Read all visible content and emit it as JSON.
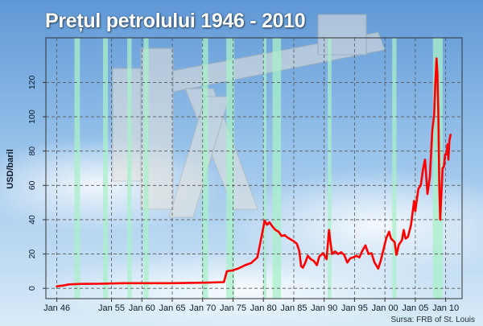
{
  "title": "Prețul petrolului 1946 - 2010",
  "source": "Sursa: FRB of St. Louis",
  "colors": {
    "line": "#ff0000",
    "recession_band": "#a8f0c8",
    "grid": "#555555",
    "plot_border": "#333333",
    "sky_top": "#5f98d6",
    "sky_bottom": "#d8ebf8"
  },
  "chart_data": {
    "type": "line",
    "title": "Prețul petrolului 1946 - 2010",
    "xlabel": "",
    "ylabel": "USD/baril",
    "xlim": [
      1944.2,
      2012.7
    ],
    "ylim": [
      -6,
      146
    ],
    "yticks": [
      0,
      20,
      40,
      60,
      80,
      100,
      120
    ],
    "xticks": [
      {
        "year": 1946,
        "label": "Jan 46"
      },
      {
        "year": 1955,
        "label": "Jan 55"
      },
      {
        "year": 1960,
        "label": "Jan 60"
      },
      {
        "year": 1965,
        "label": "Jan 65"
      },
      {
        "year": 1970,
        "label": "Jan 70"
      },
      {
        "year": 1975,
        "label": "Jan 75"
      },
      {
        "year": 1980,
        "label": "Jan 80"
      },
      {
        "year": 1985,
        "label": "Jan 85"
      },
      {
        "year": 1990,
        "label": "Jan 90"
      },
      {
        "year": 1995,
        "label": "Jan 95"
      },
      {
        "year": 2000,
        "label": "Jan 00"
      },
      {
        "year": 2005,
        "label": "Jan 05"
      },
      {
        "year": 2010,
        "label": "Jan 10"
      }
    ],
    "grid": true,
    "recessions": [
      [
        1948.9,
        1949.8
      ],
      [
        1953.6,
        1954.4
      ],
      [
        1957.6,
        1958.3
      ],
      [
        1960.3,
        1961.1
      ],
      [
        1969.9,
        1970.9
      ],
      [
        1973.9,
        1975.2
      ],
      [
        1980.0,
        1980.5
      ],
      [
        1981.5,
        1982.9
      ],
      [
        1990.6,
        1991.2
      ],
      [
        2001.2,
        2001.9
      ],
      [
        2007.9,
        2009.5
      ]
    ],
    "series": [
      {
        "values": [
          [
            1946.0,
            1.2
          ],
          [
            1947.0,
            1.6
          ],
          [
            1948.0,
            2.3
          ],
          [
            1950.0,
            2.6
          ],
          [
            1953.0,
            2.7
          ],
          [
            1957.0,
            3.0
          ],
          [
            1960.0,
            3.0
          ],
          [
            1965.0,
            3.0
          ],
          [
            1970.0,
            3.3
          ],
          [
            1973.5,
            3.6
          ],
          [
            1974.0,
            10.0
          ],
          [
            1975.0,
            10.5
          ],
          [
            1976.0,
            11.8
          ],
          [
            1977.0,
            13.5
          ],
          [
            1978.0,
            14.8
          ],
          [
            1979.0,
            18.0
          ],
          [
            1979.4,
            25.0
          ],
          [
            1979.8,
            32.0
          ],
          [
            1980.2,
            39.5
          ],
          [
            1980.6,
            37.0
          ],
          [
            1981.0,
            38.5
          ],
          [
            1981.5,
            36.0
          ],
          [
            1982.0,
            34.0
          ],
          [
            1982.5,
            33.0
          ],
          [
            1983.0,
            30.5
          ],
          [
            1983.5,
            31.0
          ],
          [
            1984.0,
            29.5
          ],
          [
            1984.5,
            28.5
          ],
          [
            1985.0,
            27.5
          ],
          [
            1985.5,
            26.0
          ],
          [
            1985.9,
            22.0
          ],
          [
            1986.2,
            13.0
          ],
          [
            1986.5,
            12.0
          ],
          [
            1986.9,
            15.0
          ],
          [
            1987.3,
            19.0
          ],
          [
            1987.8,
            17.0
          ],
          [
            1988.3,
            16.0
          ],
          [
            1988.8,
            13.5
          ],
          [
            1989.2,
            18.5
          ],
          [
            1989.8,
            20.5
          ],
          [
            1990.4,
            17.0
          ],
          [
            1990.8,
            34.0
          ],
          [
            1991.0,
            28.0
          ],
          [
            1991.3,
            20.0
          ],
          [
            1991.8,
            21.5
          ],
          [
            1992.3,
            20.0
          ],
          [
            1992.8,
            21.0
          ],
          [
            1993.3,
            19.5
          ],
          [
            1993.8,
            15.0
          ],
          [
            1994.3,
            17.5
          ],
          [
            1994.8,
            18.0
          ],
          [
            1995.3,
            19.0
          ],
          [
            1995.8,
            18.0
          ],
          [
            1996.3,
            22.0
          ],
          [
            1996.8,
            25.0
          ],
          [
            1997.3,
            20.0
          ],
          [
            1997.8,
            20.5
          ],
          [
            1998.3,
            15.0
          ],
          [
            1998.9,
            11.5
          ],
          [
            1999.3,
            16.0
          ],
          [
            1999.8,
            23.0
          ],
          [
            2000.2,
            29.0
          ],
          [
            2000.7,
            33.0
          ],
          [
            2001.0,
            29.0
          ],
          [
            2001.6,
            27.0
          ],
          [
            2001.9,
            19.5
          ],
          [
            2002.3,
            25.5
          ],
          [
            2002.8,
            28.0
          ],
          [
            2003.1,
            34.0
          ],
          [
            2003.4,
            29.0
          ],
          [
            2003.8,
            30.0
          ],
          [
            2004.3,
            37.0
          ],
          [
            2004.8,
            51.0
          ],
          [
            2005.0,
            45.0
          ],
          [
            2005.5,
            58.0
          ],
          [
            2005.9,
            60.0
          ],
          [
            2006.3,
            70.0
          ],
          [
            2006.6,
            75.0
          ],
          [
            2007.0,
            55.0
          ],
          [
            2007.4,
            65.0
          ],
          [
            2007.8,
            92.0
          ],
          [
            2008.1,
            101.0
          ],
          [
            2008.3,
            120.0
          ],
          [
            2008.5,
            134.0
          ],
          [
            2008.65,
            125.0
          ],
          [
            2008.8,
            100.0
          ],
          [
            2008.95,
            60.0
          ],
          [
            2009.1,
            40.0
          ],
          [
            2009.3,
            55.0
          ],
          [
            2009.5,
            70.0
          ],
          [
            2009.7,
            71.0
          ],
          [
            2009.9,
            78.0
          ],
          [
            2010.1,
            78.0
          ],
          [
            2010.3,
            84.0
          ],
          [
            2010.45,
            75.0
          ],
          [
            2010.6,
            86.0
          ],
          [
            2010.8,
            89.5
          ]
        ]
      }
    ]
  }
}
